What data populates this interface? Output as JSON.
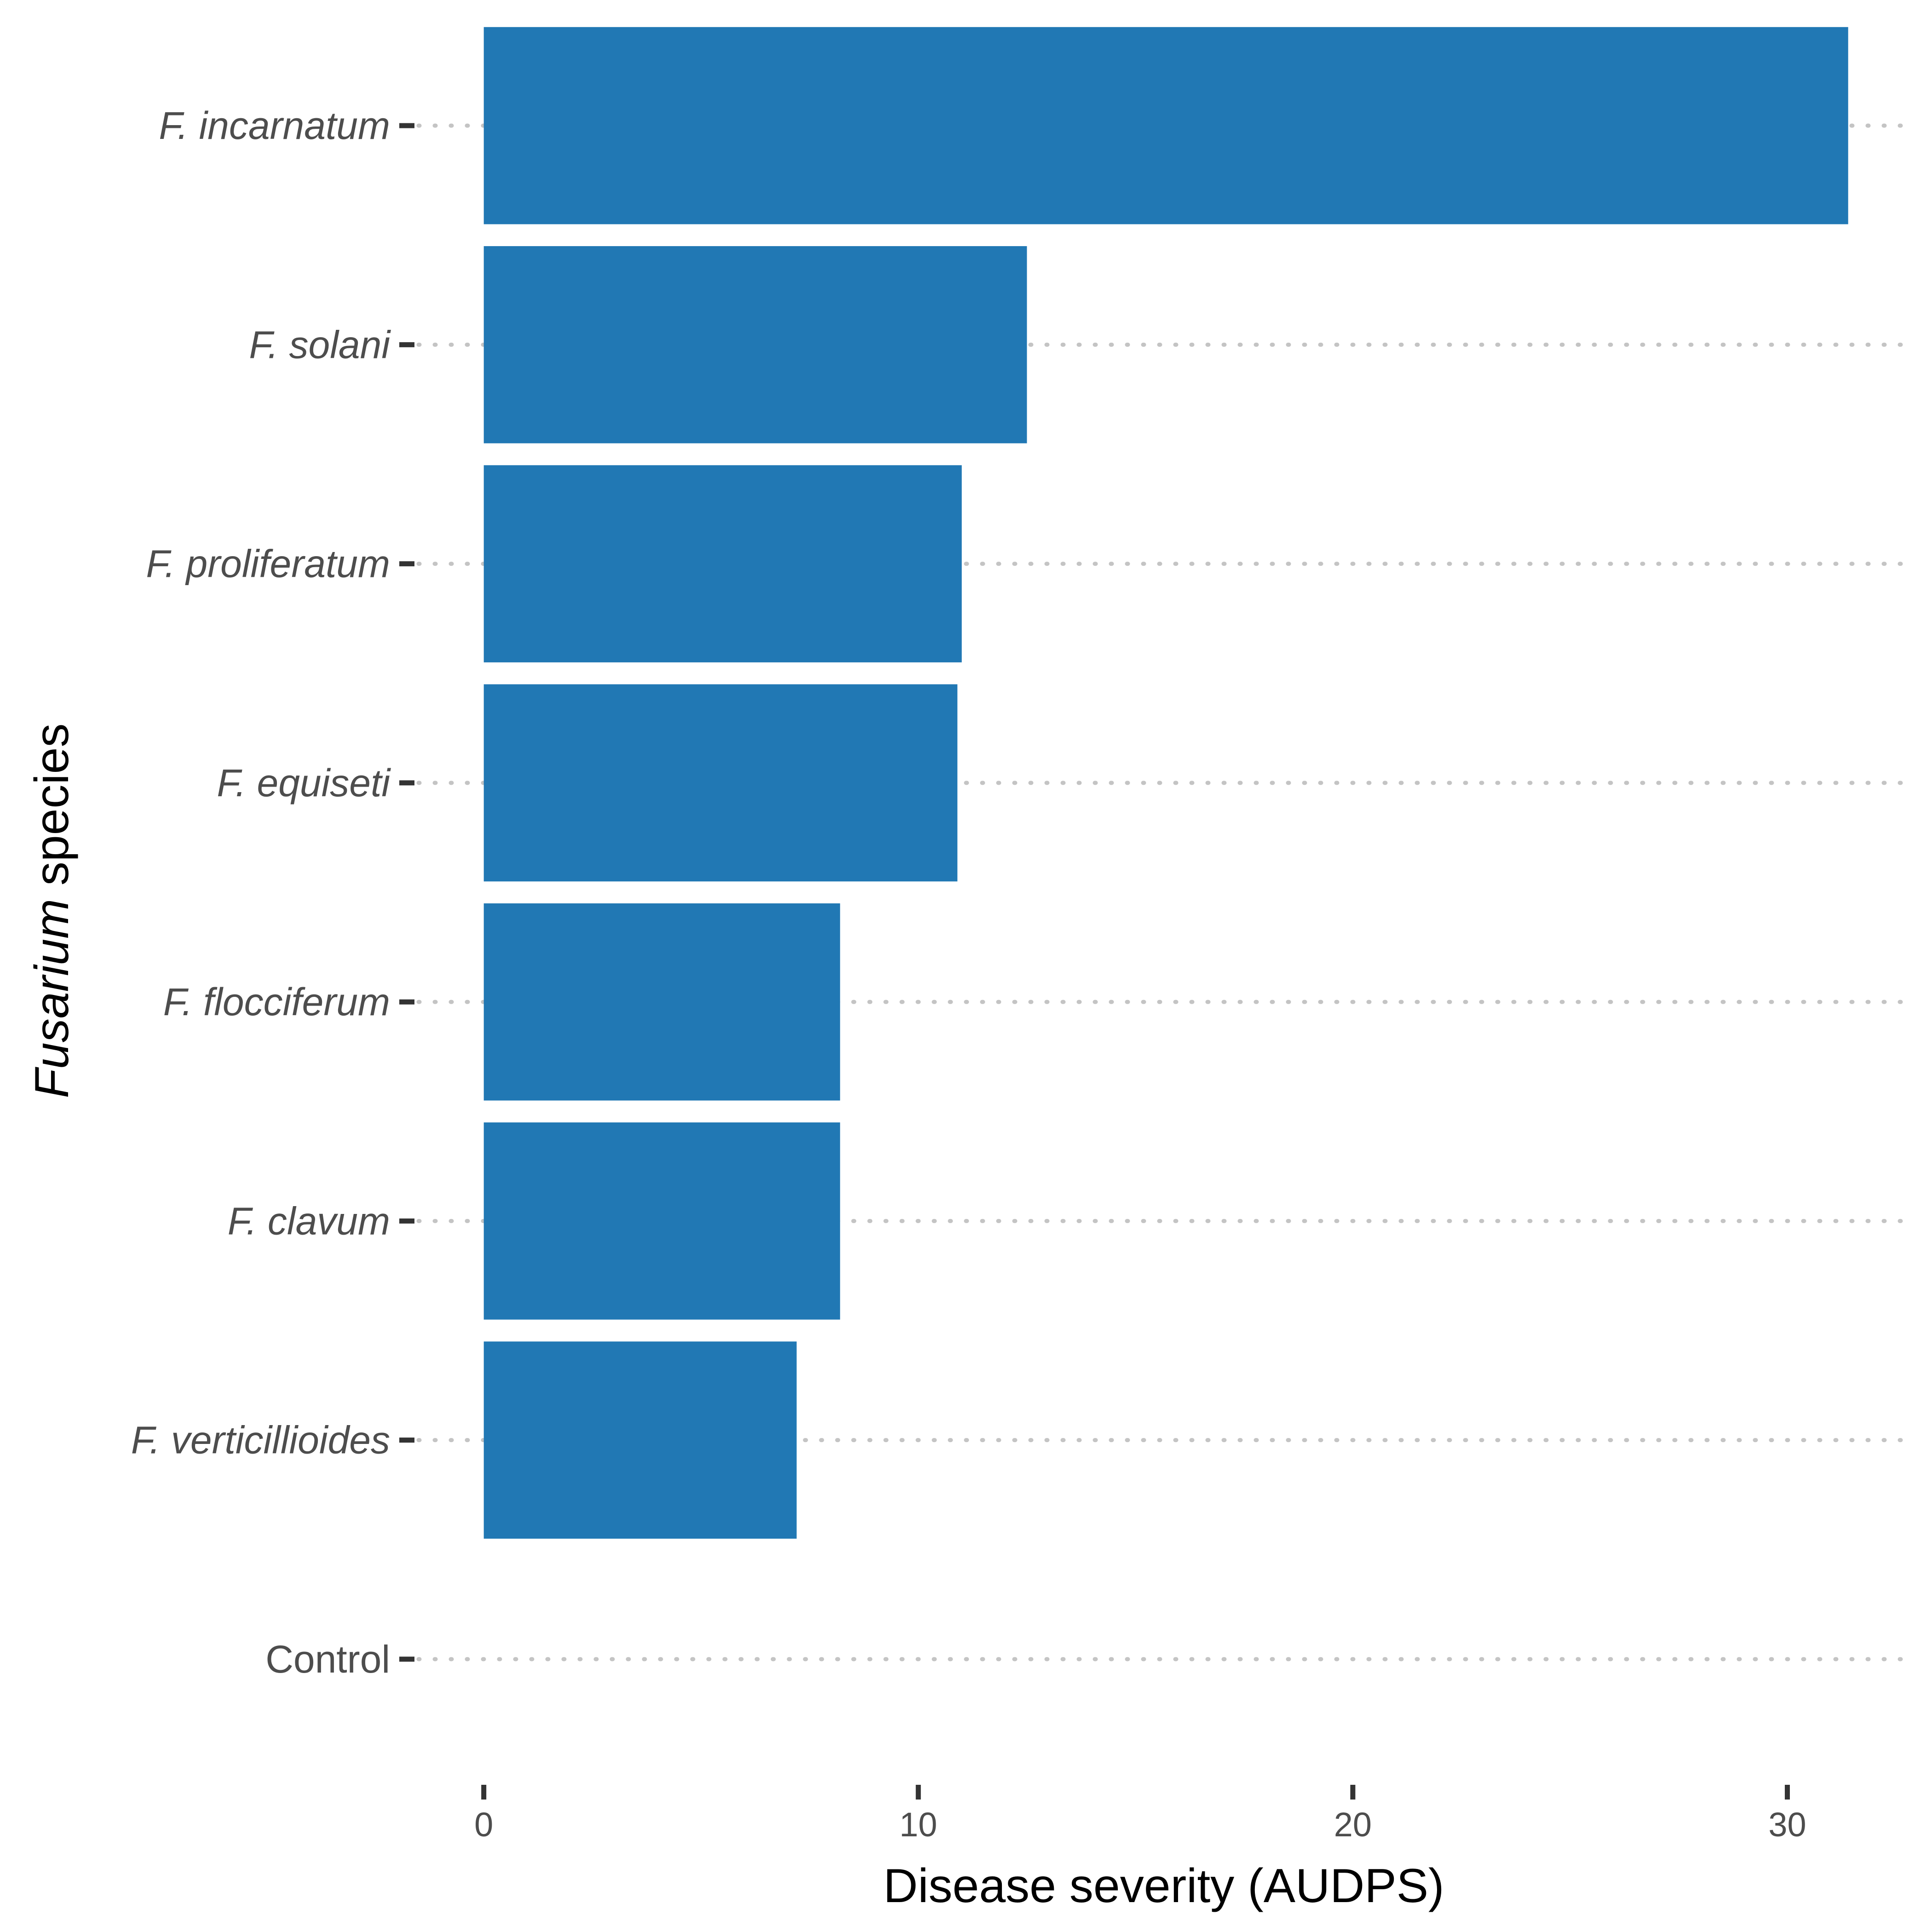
{
  "chart_data": {
    "type": "bar",
    "orientation": "horizontal",
    "categories": [
      "F. incarnatum",
      "F. solani",
      "F. proliferatum",
      "F. equiseti",
      "F. flocciferum",
      "F. clavum",
      "F. verticillioides",
      "Control"
    ],
    "italic_categories": [
      true,
      true,
      true,
      true,
      true,
      true,
      true,
      false
    ],
    "values": [
      31.4,
      12.5,
      11.0,
      10.9,
      8.2,
      8.2,
      7.2,
      0
    ],
    "xlabel": "Disease severity (AUDPS)",
    "ylabel_italic": "Fusarium",
    "ylabel_rest": " species",
    "x_ticks": [
      0,
      10,
      20,
      30
    ],
    "x_tick_labels": [
      "0",
      "10",
      "20",
      "30"
    ],
    "xlim": [
      -1.5,
      32.8
    ],
    "bar_color": "#2178b4",
    "grid": "horizontal dotted"
  }
}
